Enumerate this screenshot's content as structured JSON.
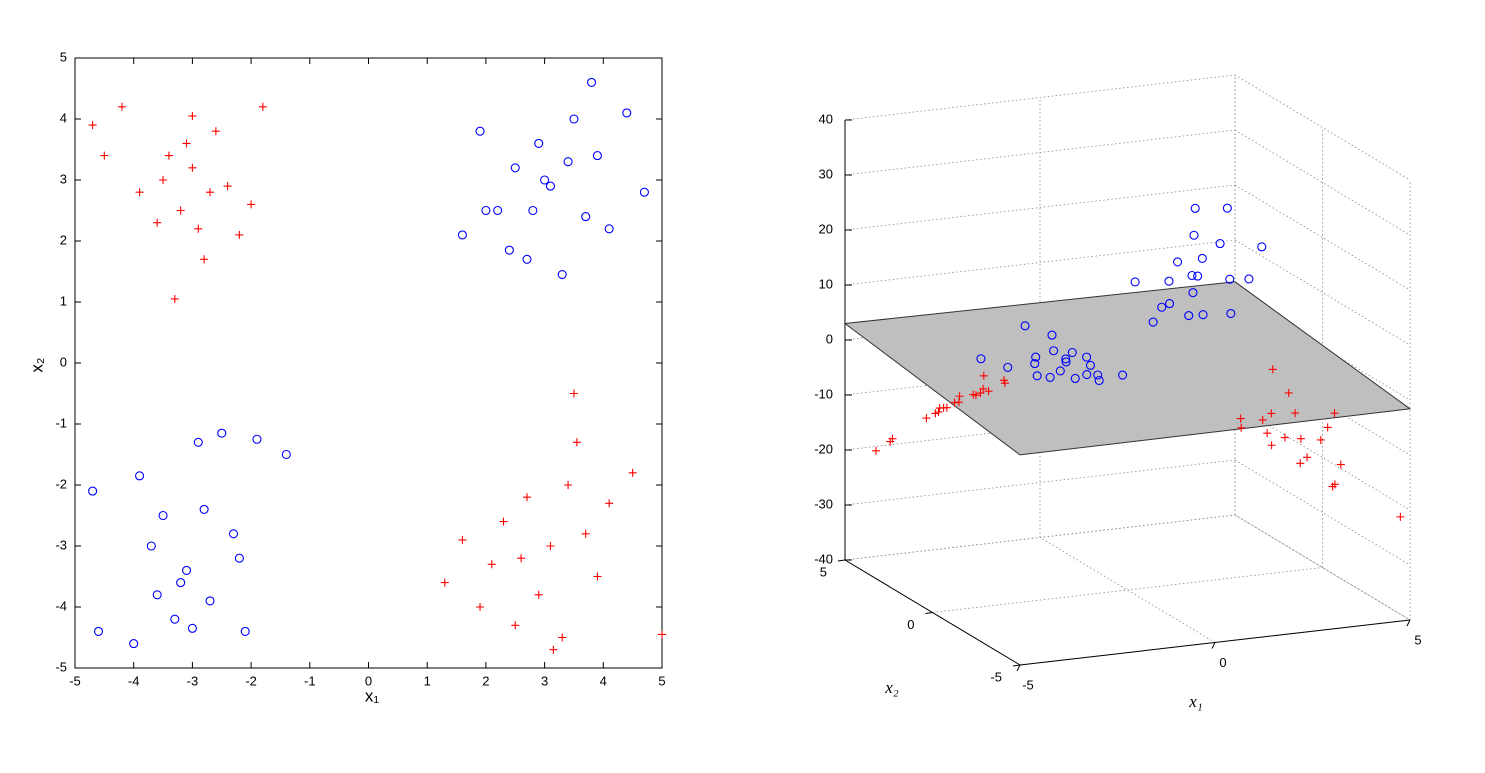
{
  "chart_data": [
    {
      "type": "scatter",
      "xlabel": "x₁",
      "ylabel": "x₂",
      "xlim": [
        -5,
        5
      ],
      "ylim": [
        -5,
        5
      ],
      "xticks": [
        -5,
        -4,
        -3,
        -2,
        -1,
        0,
        1,
        2,
        3,
        4,
        5
      ],
      "yticks": [
        -5,
        -4,
        -3,
        -2,
        -1,
        0,
        1,
        2,
        3,
        4,
        5
      ],
      "series": [
        {
          "color": "#ff0000",
          "marker": "+",
          "x": [
            -4.7,
            -4.2,
            -3.9,
            -3.6,
            -3.4,
            -3.2,
            -3.0,
            -2.8,
            -2.6,
            -2.4,
            -2.2,
            -2.0,
            -1.8,
            -3.3,
            -3.1,
            -2.9,
            -3.5,
            -2.7,
            -4.5,
            -3.0,
            1.3,
            1.6,
            1.9,
            2.1,
            2.3,
            2.5,
            2.7,
            2.9,
            3.1,
            3.3,
            3.5,
            3.7,
            3.9,
            4.1,
            4.5,
            5.0,
            3.55,
            3.15,
            2.6,
            3.4
          ],
          "y": [
            3.9,
            4.2,
            2.8,
            2.3,
            3.4,
            2.5,
            3.2,
            1.7,
            3.8,
            2.9,
            2.1,
            2.6,
            4.2,
            1.05,
            3.6,
            2.2,
            3.0,
            2.8,
            3.4,
            4.05,
            -3.6,
            -2.9,
            -4.0,
            -3.3,
            -2.6,
            -4.3,
            -2.2,
            -3.8,
            -3.0,
            -4.5,
            -0.5,
            -2.8,
            -3.5,
            -2.3,
            -1.8,
            -4.45,
            -1.3,
            -4.7,
            -3.2,
            -2.0
          ]
        },
        {
          "color": "#0000ff",
          "marker": "o",
          "x": [
            1.6,
            1.9,
            2.2,
            2.5,
            2.7,
            2.9,
            3.1,
            3.3,
            3.5,
            3.7,
            3.9,
            4.1,
            4.4,
            4.7,
            2.8,
            3.0,
            3.8,
            2.4,
            3.4,
            2.0,
            -4.7,
            -4.6,
            -4.0,
            -3.7,
            -3.5,
            -3.3,
            -3.1,
            -2.9,
            -2.7,
            -2.5,
            -2.3,
            -2.1,
            -1.9,
            -1.4,
            -3.2,
            -2.8,
            -3.9,
            -2.2,
            -3.6,
            -3.0
          ],
          "y": [
            2.1,
            3.8,
            2.5,
            3.2,
            1.7,
            3.6,
            2.9,
            1.45,
            4.0,
            2.4,
            3.4,
            2.2,
            4.1,
            2.8,
            2.5,
            3.0,
            4.6,
            1.85,
            3.3,
            2.5,
            -2.1,
            -4.4,
            -4.6,
            -3.0,
            -2.5,
            -4.2,
            -3.4,
            -1.3,
            -3.9,
            -1.15,
            -2.8,
            -4.4,
            -1.25,
            -1.5,
            -3.6,
            -2.4,
            -1.85,
            -3.2,
            -3.8,
            -4.35
          ]
        }
      ]
    },
    {
      "type": "scatter3d",
      "xlabel": "x₁",
      "ylabel": "x₂",
      "xlim": [
        -5,
        5
      ],
      "ylim": [
        -5,
        5
      ],
      "zlim": [
        -40,
        40
      ],
      "xticks": [
        -5,
        0,
        5
      ],
      "yticks": [
        -5,
        0,
        5
      ],
      "zticks": [
        -40,
        -30,
        -20,
        -10,
        0,
        10,
        20,
        30,
        40
      ],
      "grid": true,
      "plane": {
        "color": "#bfbfbf",
        "x": [
          -5,
          5,
          5,
          -5
        ],
        "y": [
          5,
          5,
          -5,
          -5
        ],
        "z": [
          3,
          2.4,
          -1.6,
          -1.8
        ]
      },
      "series": [
        {
          "color": "#ff0000",
          "marker": "+",
          "x": [
            -4.7,
            -4.2,
            -3.9,
            -3.6,
            -3.4,
            -3.2,
            -3.0,
            -2.8,
            -2.6,
            -2.4,
            -2.2,
            -2.0,
            -1.8,
            -3.3,
            -3.1,
            -2.9,
            -3.5,
            -2.7,
            -4.5,
            -3.0,
            1.3,
            1.6,
            1.9,
            2.1,
            2.3,
            2.5,
            2.7,
            2.9,
            3.1,
            3.3,
            3.5,
            3.7,
            3.9,
            4.1,
            4.5,
            5.0,
            3.55,
            3.15,
            2.6,
            3.4
          ],
          "y": [
            3.9,
            4.2,
            2.8,
            2.3,
            3.4,
            2.5,
            3.2,
            1.7,
            3.8,
            2.9,
            2.1,
            2.6,
            4.2,
            1.05,
            3.6,
            2.2,
            3.0,
            2.8,
            3.4,
            4.05,
            -3.6,
            -2.9,
            -4.0,
            -3.3,
            -2.6,
            -4.3,
            -2.2,
            -3.8,
            -3.0,
            -4.5,
            -0.5,
            -2.8,
            -3.5,
            -2.3,
            -1.8,
            -4.45,
            -1.3,
            -4.7,
            -3.2,
            -2.0
          ],
          "z": [
            -18.3,
            -17.6,
            -10.9,
            -8.3,
            -11.6,
            -8,
            -9.6,
            -4.8,
            -9.9,
            -7,
            -4.6,
            -5.2,
            -7.6,
            -3.5,
            -11.2,
            -6.4,
            -10.5,
            -7.6,
            -15.3,
            -12.2,
            -4.7,
            -4.6,
            -7.6,
            -6.9,
            -6,
            -10.8,
            -5.9,
            -11,
            -9.3,
            -14.9,
            -1.8,
            -10.4,
            -13.7,
            -9.4,
            -8.1,
            -22.3,
            -4.6,
            -14.8,
            -8.3,
            -6.8
          ]
        },
        {
          "color": "#0000ff",
          "marker": "o",
          "x": [
            1.6,
            1.9,
            2.2,
            2.5,
            2.7,
            2.9,
            3.1,
            3.3,
            3.5,
            3.7,
            3.9,
            4.1,
            4.4,
            4.7,
            2.8,
            3.0,
            3.8,
            2.4,
            3.4,
            2.0,
            -4.7,
            -4.6,
            -4.0,
            -3.7,
            -3.5,
            -3.3,
            -3.1,
            -2.9,
            -2.7,
            -2.5,
            -2.3,
            -2.1,
            -1.9,
            -1.4,
            -3.2,
            -2.8,
            -3.9,
            -2.2,
            -3.6,
            -3.0
          ],
          "y": [
            2.1,
            3.8,
            2.5,
            3.2,
            1.7,
            3.6,
            2.9,
            1.45,
            4.0,
            2.4,
            3.4,
            2.2,
            4.1,
            2.8,
            2.5,
            3.0,
            4.6,
            1.85,
            3.3,
            2.5,
            -2.1,
            -4.4,
            -4.6,
            -3.0,
            -2.5,
            -4.2,
            -3.4,
            -1.3,
            -3.9,
            -1.15,
            -2.8,
            -4.4,
            -1.25,
            -1.5,
            -3.6,
            -2.4,
            -1.85,
            -3.2,
            -3.8,
            -4.35
          ],
          "z": [
            3.4,
            7.2,
            5.5,
            8,
            4.6,
            10.4,
            9,
            4.8,
            14,
            8.9,
            13.3,
            9,
            18,
            13.2,
            7,
            9,
            17.5,
            4.4,
            11.2,
            5,
            9.9,
            20.2,
            18.4,
            11.1,
            8.8,
            13.9,
            10.5,
            3.8,
            10.5,
            2.9,
            6.4,
            9.2,
            2.4,
            2.1,
            11.5,
            6.7,
            7.2,
            7,
            13.7,
            13.1
          ]
        }
      ]
    }
  ]
}
